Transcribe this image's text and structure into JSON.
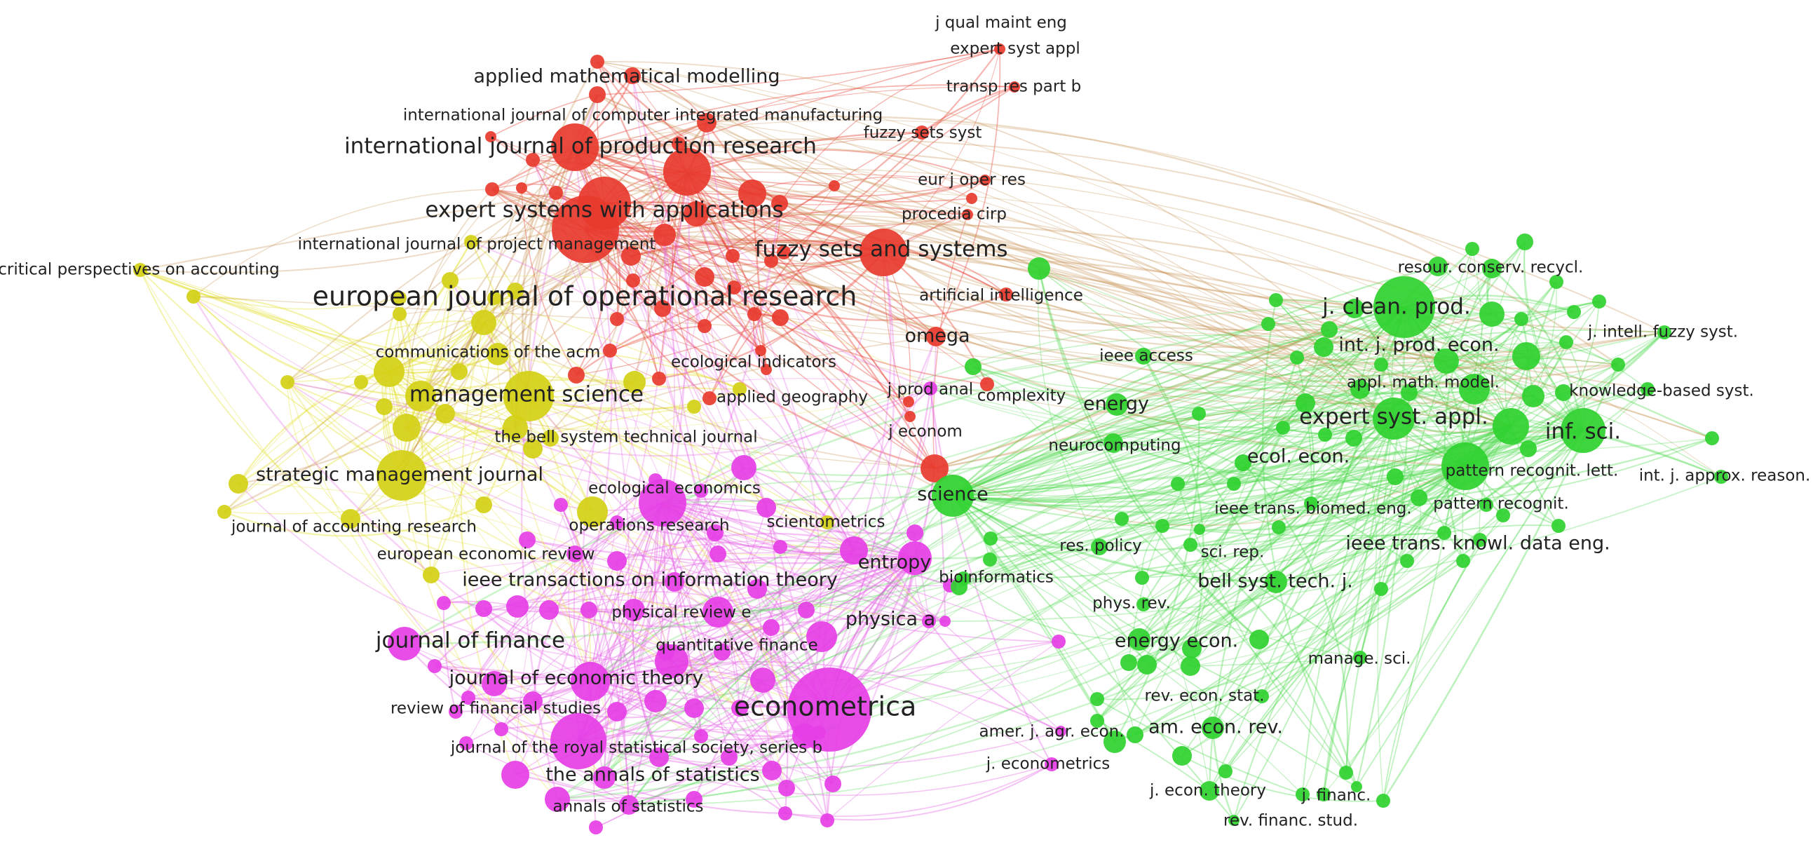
{
  "colors": {
    "red": "#e8392e",
    "yellow": "#d4d016",
    "magenta": "#e63ee6",
    "green": "#2fd12f",
    "edge_red": "#e8392e",
    "edge_yellow": "#e3df2a",
    "edge_magenta": "#e663e6",
    "edge_green": "#52d952",
    "edge_mixed": "#c58a4a"
  },
  "labels": {
    "j_qual_maint_eng": "j qual maint eng",
    "expert_syst_appl_red": "expert syst appl",
    "transp_res_part_b": "transp res part b",
    "fuzzy_sets_syst": "fuzzy sets syst",
    "eur_j_oper_res": "eur j oper res",
    "procedia_cirp": "procedia cirp",
    "applied_mathematical_modelling": "applied mathematical modelling",
    "ijcim": "international journal of computer integrated manufacturing",
    "ijpr": "international journal of production research",
    "eswa": "expert systems with applications",
    "ijpm": "international journal of project management",
    "fuzzy_sets_and_systems": "fuzzy sets and systems",
    "critical_perspectives": "critical perspectives on accounting",
    "ejor": "european journal of operational research",
    "artificial_intelligence": "artificial intelligence",
    "omega": "omega",
    "communications_acm": "communications of the acm",
    "ecological_indicators": "ecological indicators",
    "j_prod_anal": "j prod anal",
    "complexity": "complexity",
    "management_science": "management science",
    "applied_geography": "applied geography",
    "j_econom": "j econom",
    "bell_system": "the bell system technical journal",
    "smj": "strategic management journal",
    "ecological_economics": "ecological economics",
    "science": "science",
    "operations_research": "operations research",
    "scientometrics": "scientometrics",
    "journal_accounting_research": "journal of accounting research",
    "european_economic_review": "european economic review",
    "entropy": "entropy",
    "ieee_tit": "ieee transactions on information theory",
    "bioinformatics": "bioinformatics",
    "physical_review_e": "physical review e",
    "physica_a": "physica a",
    "journal_of_finance": "journal of finance",
    "quantitative_finance": "quantitative finance",
    "journal_economic_theory": "journal of economic theory",
    "econometrica": "econometrica",
    "review_financial_studies": "review of financial studies",
    "jrss_b": "journal of the royal statistical society, series b",
    "annals_of_statistics_the": "the annals of statistics",
    "annals_of_statistics": "annals of statistics",
    "resour_conserv_recycl": "resour. conserv. recycl.",
    "j_clean_prod": "j. clean. prod.",
    "j_intell_fuzzy_syst": "j. intell. fuzzy syst.",
    "int_j_prod_econ": "int. j. prod. econ.",
    "ieee_access": "ieee access",
    "appl_math_model": "appl. math. model.",
    "knowledge_based_syst": "knowledge-based syst.",
    "energy": "energy",
    "expert_syst_appl_green": "expert syst. appl.",
    "inf_sci": "inf. sci.",
    "neurocomputing": "neurocomputing",
    "ecol_econ": "ecol. econ.",
    "pattern_recognit_lett": "pattern recognit. lett.",
    "int_j_approx_reason": "int. j. approx. reason.",
    "ieee_trans_biomed_eng": "ieee trans. biomed. eng.",
    "pattern_recognit": "pattern recognit.",
    "res_policy": "res. policy",
    "sci_rep": "sci. rep.",
    "ieee_trans_knowl_data_eng": "ieee trans. knowl. data eng.",
    "bell_syst_tech_j": "bell syst. tech. j.",
    "phys_rev": "phys. rev.",
    "energy_econ": "energy econ.",
    "manage_sci": "manage. sci.",
    "rev_econ_stat": "rev. econ. stat.",
    "amer_j_agr_econ": "amer. j. agr. econ.",
    "am_econ_rev": "am. econ. rev.",
    "j_econometrics": "j. econometrics",
    "j_econ_theory": "j. econ. theory",
    "j_financ": "j. financ.",
    "rev_financ_stud": "rev. financ. stud."
  }
}
